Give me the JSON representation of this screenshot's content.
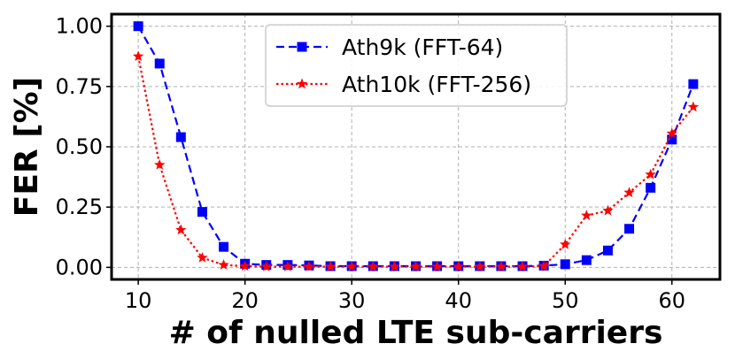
{
  "chart_data": {
    "type": "line",
    "title": "",
    "xlabel": "# of nulled LTE sub-carriers",
    "ylabel": "FER [%]",
    "xlim": [
      7.5,
      64.5
    ],
    "ylim": [
      -0.05,
      1.05
    ],
    "xticks": [
      10,
      20,
      30,
      40,
      50,
      60
    ],
    "xtick_labels": [
      "10",
      "20",
      "30",
      "40",
      "50",
      "60"
    ],
    "yticks": [
      0.0,
      0.25,
      0.5,
      0.75,
      1.0
    ],
    "ytick_labels": [
      "0.00",
      "0.25",
      "0.50",
      "0.75",
      "1.00"
    ],
    "grid": true,
    "legend_position": "top-center",
    "x": [
      10,
      12,
      14,
      16,
      18,
      20,
      22,
      24,
      26,
      28,
      30,
      32,
      34,
      36,
      38,
      40,
      42,
      44,
      46,
      48,
      50,
      52,
      54,
      56,
      58,
      60,
      62
    ],
    "series": [
      {
        "name": "Ath9k (FFT-64)",
        "color": "#0000ff",
        "marker": "square",
        "line_style": "dashed",
        "values": [
          1.0,
          0.845,
          0.54,
          0.23,
          0.085,
          0.015,
          0.01,
          0.01,
          0.008,
          0.005,
          0.005,
          0.005,
          0.005,
          0.005,
          0.005,
          0.005,
          0.005,
          0.005,
          0.005,
          0.007,
          0.013,
          0.03,
          0.07,
          0.16,
          0.33,
          0.53,
          0.76
        ]
      },
      {
        "name": "Ath10k (FFT-256)",
        "color": "#ff0000",
        "marker": "star",
        "line_style": "dotted",
        "values": [
          0.875,
          0.425,
          0.155,
          0.04,
          0.01,
          0.005,
          0.003,
          0.003,
          0.003,
          0.003,
          0.003,
          0.003,
          0.003,
          0.003,
          0.003,
          0.003,
          0.003,
          0.003,
          0.003,
          0.005,
          0.095,
          0.215,
          0.235,
          0.31,
          0.385,
          0.555,
          0.665
        ]
      }
    ]
  }
}
